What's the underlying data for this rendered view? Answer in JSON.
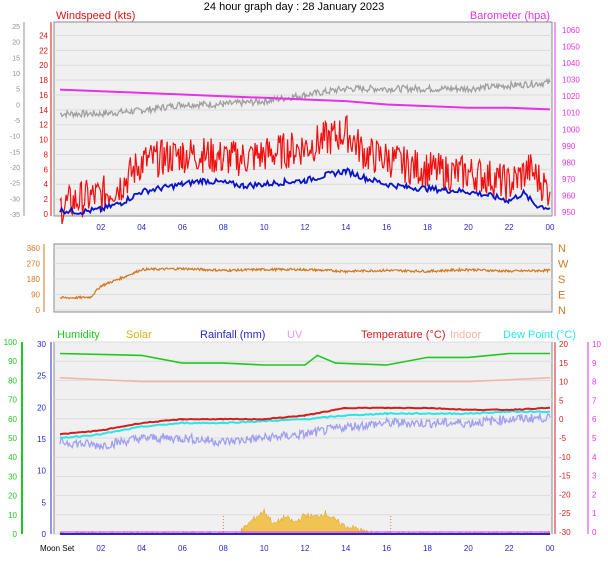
{
  "title": "24 hour graph day : 28 January 2023",
  "x_ticks": [
    "02",
    "04",
    "06",
    "08",
    "10",
    "12",
    "14",
    "16",
    "18",
    "20",
    "22",
    "00"
  ],
  "moon_label": "Moon Set",
  "colors": {
    "wind_avg": "#0a14c8",
    "wind_gust": "#f01010",
    "barometer": "#e632e6",
    "temp_top": "#a0a0a0",
    "direction": "#d2781e",
    "humidity": "#1ec81e",
    "solar": "#f0b41e",
    "rainfall": "#2828c8",
    "uv": "#e632e6",
    "temperature": "#d21e1e",
    "indoor": "#f0b4a0",
    "dewpoint": "#28e6e6",
    "windchill": "#a0a0f0"
  },
  "chart_data": [
    {
      "type": "line",
      "name": "wind-barometer",
      "labels": {
        "left": "Windspeed (kts)",
        "right": "Barometer (hpa)"
      },
      "left_axis_primary": [
        24,
        22,
        20,
        18,
        16,
        14,
        12,
        10,
        8,
        6,
        4,
        2,
        0
      ],
      "left_axis_secondary": [
        25,
        20,
        15,
        10,
        5,
        0,
        -5,
        -10,
        -15,
        -20,
        -25,
        -30,
        -35
      ],
      "right_axis": [
        1060,
        1050,
        1040,
        1030,
        1020,
        1010,
        1000,
        990,
        980,
        970,
        960,
        950
      ],
      "wind_avg_kts": [
        [
          0,
          0.5
        ],
        [
          1,
          0.3
        ],
        [
          2,
          0.6
        ],
        [
          3,
          1.5
        ],
        [
          4,
          3
        ],
        [
          5,
          3.5
        ],
        [
          6,
          4
        ],
        [
          7,
          4.5
        ],
        [
          8,
          4.2
        ],
        [
          9,
          3.8
        ],
        [
          10,
          4
        ],
        [
          11,
          4.3
        ],
        [
          12,
          4.5
        ],
        [
          13,
          5.2
        ],
        [
          14,
          5.8
        ],
        [
          15,
          4.8
        ],
        [
          16,
          4
        ],
        [
          17,
          3.6
        ],
        [
          18,
          3.4
        ],
        [
          19,
          3.2
        ],
        [
          20,
          3
        ],
        [
          21,
          2.5
        ],
        [
          22,
          1.8
        ],
        [
          22.7,
          2.8
        ],
        [
          23.3,
          1.2
        ],
        [
          24,
          0.8
        ]
      ],
      "wind_gust_kts": [
        [
          0,
          1
        ],
        [
          1,
          2
        ],
        [
          2,
          2.5
        ],
        [
          3,
          4
        ],
        [
          4,
          7
        ],
        [
          5,
          7.5
        ],
        [
          6,
          8
        ],
        [
          7,
          8
        ],
        [
          8,
          7.5
        ],
        [
          9,
          7.5
        ],
        [
          10,
          8
        ],
        [
          11,
          8.5
        ],
        [
          12,
          9
        ],
        [
          13,
          10
        ],
        [
          14,
          11
        ],
        [
          15,
          8
        ],
        [
          16,
          7.5
        ],
        [
          17,
          6.5
        ],
        [
          18,
          6
        ],
        [
          19,
          5.5
        ],
        [
          20,
          5.5
        ],
        [
          21,
          5
        ],
        [
          22,
          4
        ],
        [
          23,
          6
        ],
        [
          24,
          3
        ]
      ],
      "barometer_hpa": [
        [
          0,
          1024
        ],
        [
          2,
          1023
        ],
        [
          4,
          1022
        ],
        [
          6,
          1021
        ],
        [
          8,
          1020
        ],
        [
          10,
          1019
        ],
        [
          12,
          1018
        ],
        [
          14,
          1017
        ],
        [
          16,
          1015
        ],
        [
          18,
          1014
        ],
        [
          20,
          1013
        ],
        [
          22,
          1013
        ],
        [
          24,
          1012
        ]
      ],
      "temperature_c": [
        [
          0,
          -3
        ],
        [
          2,
          -3
        ],
        [
          4,
          -2
        ],
        [
          6,
          0
        ],
        [
          8,
          0
        ],
        [
          10,
          1
        ],
        [
          12,
          3
        ],
        [
          14,
          5
        ],
        [
          16,
          5
        ],
        [
          18,
          5
        ],
        [
          20,
          5
        ],
        [
          22,
          6
        ],
        [
          24,
          7
        ]
      ]
    },
    {
      "type": "line",
      "name": "wind-direction",
      "left_axis": [
        360,
        270,
        180,
        90,
        0
      ],
      "right_axis": [
        "N",
        "W",
        "S",
        "E",
        "N"
      ],
      "direction_deg": [
        [
          0,
          70
        ],
        [
          1,
          72
        ],
        [
          1.5,
          75
        ],
        [
          2,
          140
        ],
        [
          3,
          185
        ],
        [
          4,
          235
        ],
        [
          6,
          240
        ],
        [
          8,
          230
        ],
        [
          10,
          235
        ],
        [
          12,
          235
        ],
        [
          14,
          225
        ],
        [
          16,
          230
        ],
        [
          18,
          225
        ],
        [
          20,
          235
        ],
        [
          22,
          225
        ],
        [
          24,
          230
        ]
      ]
    },
    {
      "type": "line",
      "name": "humidity-temperature",
      "legend": [
        "Humidity",
        "Solar",
        "Rainfall (mm)",
        "UV",
        "Temperature (°C)",
        "Indoor",
        "Dew Point (°C)"
      ],
      "axis_humidity": [
        100,
        90,
        80,
        70,
        60,
        50,
        40,
        30,
        20,
        10,
        0
      ],
      "axis_rain": [
        30,
        25,
        20,
        15,
        10,
        5,
        0
      ],
      "axis_temp": [
        20,
        15,
        10,
        5,
        0,
        -5,
        -10,
        -15,
        -20,
        -25,
        -30
      ],
      "axis_uv": [
        10,
        9,
        8,
        7,
        6,
        5,
        4,
        3,
        2,
        1,
        0
      ],
      "humidity_pct": [
        [
          0,
          94
        ],
        [
          4,
          93
        ],
        [
          5.5,
          90
        ],
        [
          6,
          89
        ],
        [
          8,
          89
        ],
        [
          10,
          88
        ],
        [
          12,
          88
        ],
        [
          12.6,
          93
        ],
        [
          13.5,
          89
        ],
        [
          16,
          88
        ],
        [
          18,
          92
        ],
        [
          20,
          92
        ],
        [
          22,
          94
        ],
        [
          24,
          94
        ]
      ],
      "temperature_c": [
        [
          0,
          -4
        ],
        [
          2,
          -3
        ],
        [
          4,
          -1
        ],
        [
          6,
          0
        ],
        [
          8,
          0
        ],
        [
          10,
          0
        ],
        [
          12,
          1
        ],
        [
          14,
          3
        ],
        [
          16,
          3
        ],
        [
          18,
          3
        ],
        [
          20,
          2.5
        ],
        [
          22,
          2.5
        ],
        [
          24,
          3
        ]
      ],
      "dewpoint_c": [
        [
          0,
          -5
        ],
        [
          2,
          -4
        ],
        [
          4,
          -2
        ],
        [
          6,
          -1
        ],
        [
          8,
          -1
        ],
        [
          10,
          -0.5
        ],
        [
          12,
          0
        ],
        [
          14,
          1
        ],
        [
          16,
          1.5
        ],
        [
          18,
          1.5
        ],
        [
          20,
          1.5
        ],
        [
          22,
          2
        ],
        [
          24,
          2
        ]
      ],
      "windchill_c": [
        [
          0,
          -6
        ],
        [
          2,
          -7
        ],
        [
          4,
          -5
        ],
        [
          6,
          -5
        ],
        [
          8,
          -6
        ],
        [
          10,
          -5
        ],
        [
          12,
          -4
        ],
        [
          14,
          -2
        ],
        [
          16,
          -1
        ],
        [
          18,
          -1
        ],
        [
          20,
          -1
        ],
        [
          22,
          0
        ],
        [
          24,
          0.5
        ]
      ],
      "indoor_c": [
        [
          0,
          11
        ],
        [
          4,
          10
        ],
        [
          8,
          10
        ],
        [
          12,
          10
        ],
        [
          16,
          10
        ],
        [
          20,
          10
        ],
        [
          24,
          11
        ]
      ],
      "rainfall_mm": [
        [
          0,
          0
        ],
        [
          24,
          0
        ]
      ],
      "uv_index": [
        [
          0,
          0
        ],
        [
          24,
          0
        ]
      ],
      "solar_wm2_pct": [
        [
          0,
          0
        ],
        [
          8.7,
          0
        ],
        [
          9,
          3
        ],
        [
          9.5,
          8
        ],
        [
          10,
          12
        ],
        [
          10.5,
          5
        ],
        [
          11,
          9
        ],
        [
          11.5,
          6
        ],
        [
          12,
          10
        ],
        [
          12.5,
          9
        ],
        [
          13,
          11
        ],
        [
          13.5,
          7
        ],
        [
          14,
          4
        ],
        [
          14.5,
          3
        ],
        [
          15,
          1
        ],
        [
          15.5,
          0
        ],
        [
          24,
          0
        ]
      ]
    }
  ]
}
